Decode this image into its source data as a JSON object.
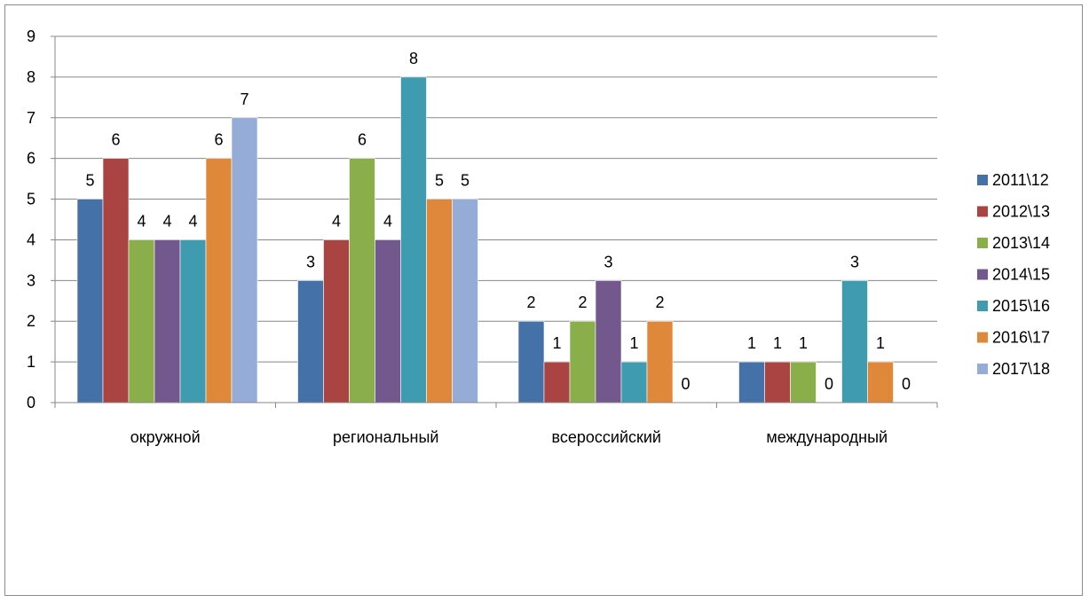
{
  "chart_data": {
    "type": "bar",
    "title": "",
    "xlabel": "",
    "ylabel": "",
    "categories": [
      "окружной",
      "региональный",
      "всероссийский",
      "международный"
    ],
    "ylim": [
      0,
      9
    ],
    "yticks": [
      "0",
      "1",
      "2",
      "3",
      "4",
      "5",
      "6",
      "7",
      "8",
      "9"
    ],
    "grid": true,
    "legend_position": "right",
    "series": [
      {
        "name": "2011\\12",
        "color": "#4472A8",
        "values": [
          5,
          3,
          2,
          1
        ]
      },
      {
        "name": "2012\\13",
        "color": "#A94442",
        "values": [
          6,
          4,
          1,
          1
        ]
      },
      {
        "name": "2013\\14",
        "color": "#8AAE4A",
        "values": [
          4,
          6,
          2,
          1
        ]
      },
      {
        "name": "2014\\15",
        "color": "#73588E",
        "values": [
          4,
          4,
          3,
          0
        ]
      },
      {
        "name": "2015\\16",
        "color": "#3F9BB0",
        "values": [
          4,
          8,
          1,
          3
        ]
      },
      {
        "name": "2016\\17",
        "color": "#E08839",
        "values": [
          6,
          5,
          2,
          1
        ]
      },
      {
        "name": "2017\\18",
        "color": "#95ACD6",
        "values": [
          7,
          5,
          0,
          0
        ]
      }
    ]
  }
}
